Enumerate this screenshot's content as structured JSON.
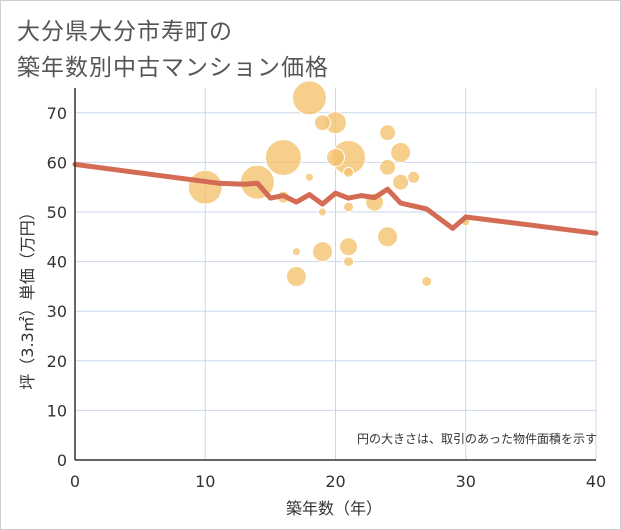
{
  "title_lines": [
    "大分県大分市寿町の",
    "築年数別中古マンション価格"
  ],
  "chart_data": {
    "type": "scatter",
    "title": "大分県大分市寿町の築年数別中古マンション価格",
    "xlabel": "築年数（年）",
    "ylabel": "坪（3.3㎡）単価（万円）",
    "xlim": [
      0,
      40
    ],
    "ylim": [
      0,
      75
    ],
    "xticks": [
      0,
      10,
      20,
      30,
      40
    ],
    "yticks": [
      0,
      10,
      20,
      30,
      40,
      50,
      60,
      70
    ],
    "grid": true,
    "annotation": "円の大きさは、取引のあった物件面積を示す",
    "colors": {
      "bubble": "#f5c16c",
      "line": "#d46b55",
      "grid": "#c9d7e8"
    },
    "bubbles": [
      {
        "x": 10,
        "y": 55,
        "size": 17
      },
      {
        "x": 14,
        "y": 56,
        "size": 17
      },
      {
        "x": 16,
        "y": 61,
        "size": 18
      },
      {
        "x": 16,
        "y": 53,
        "size": 6
      },
      {
        "x": 17,
        "y": 42,
        "size": 4
      },
      {
        "x": 17,
        "y": 37,
        "size": 10
      },
      {
        "x": 18,
        "y": 73,
        "size": 17
      },
      {
        "x": 18,
        "y": 57,
        "size": 4
      },
      {
        "x": 19,
        "y": 68,
        "size": 8
      },
      {
        "x": 19,
        "y": 50,
        "size": 4
      },
      {
        "x": 19,
        "y": 42,
        "size": 10
      },
      {
        "x": 20,
        "y": 68,
        "size": 11
      },
      {
        "x": 20,
        "y": 61,
        "size": 9
      },
      {
        "x": 21,
        "y": 61,
        "size": 17
      },
      {
        "x": 21,
        "y": 58,
        "size": 5
      },
      {
        "x": 21,
        "y": 51,
        "size": 5
      },
      {
        "x": 21,
        "y": 43,
        "size": 9
      },
      {
        "x": 21,
        "y": 40,
        "size": 5
      },
      {
        "x": 23,
        "y": 52,
        "size": 9
      },
      {
        "x": 24,
        "y": 66,
        "size": 8
      },
      {
        "x": 24,
        "y": 59,
        "size": 8
      },
      {
        "x": 24,
        "y": 45,
        "size": 10
      },
      {
        "x": 25,
        "y": 62,
        "size": 10
      },
      {
        "x": 25,
        "y": 56,
        "size": 8
      },
      {
        "x": 26,
        "y": 57,
        "size": 6
      },
      {
        "x": 27,
        "y": 36,
        "size": 5
      },
      {
        "x": 30,
        "y": 48,
        "size": 4
      }
    ],
    "trend": [
      {
        "x": 0,
        "y": 59.6
      },
      {
        "x": 11,
        "y": 55.8
      },
      {
        "x": 13,
        "y": 55.6
      },
      {
        "x": 14,
        "y": 55.8
      },
      {
        "x": 15,
        "y": 52.8
      },
      {
        "x": 16,
        "y": 53.3
      },
      {
        "x": 17,
        "y": 52.0
      },
      {
        "x": 18,
        "y": 53.5
      },
      {
        "x": 19,
        "y": 51.6
      },
      {
        "x": 20,
        "y": 53.8
      },
      {
        "x": 21,
        "y": 52.8
      },
      {
        "x": 22,
        "y": 53.3
      },
      {
        "x": 23,
        "y": 52.9
      },
      {
        "x": 24,
        "y": 54.6
      },
      {
        "x": 25,
        "y": 51.8
      },
      {
        "x": 27,
        "y": 50.6
      },
      {
        "x": 29,
        "y": 46.7
      },
      {
        "x": 30,
        "y": 49.0
      },
      {
        "x": 40,
        "y": 45.7
      }
    ]
  }
}
